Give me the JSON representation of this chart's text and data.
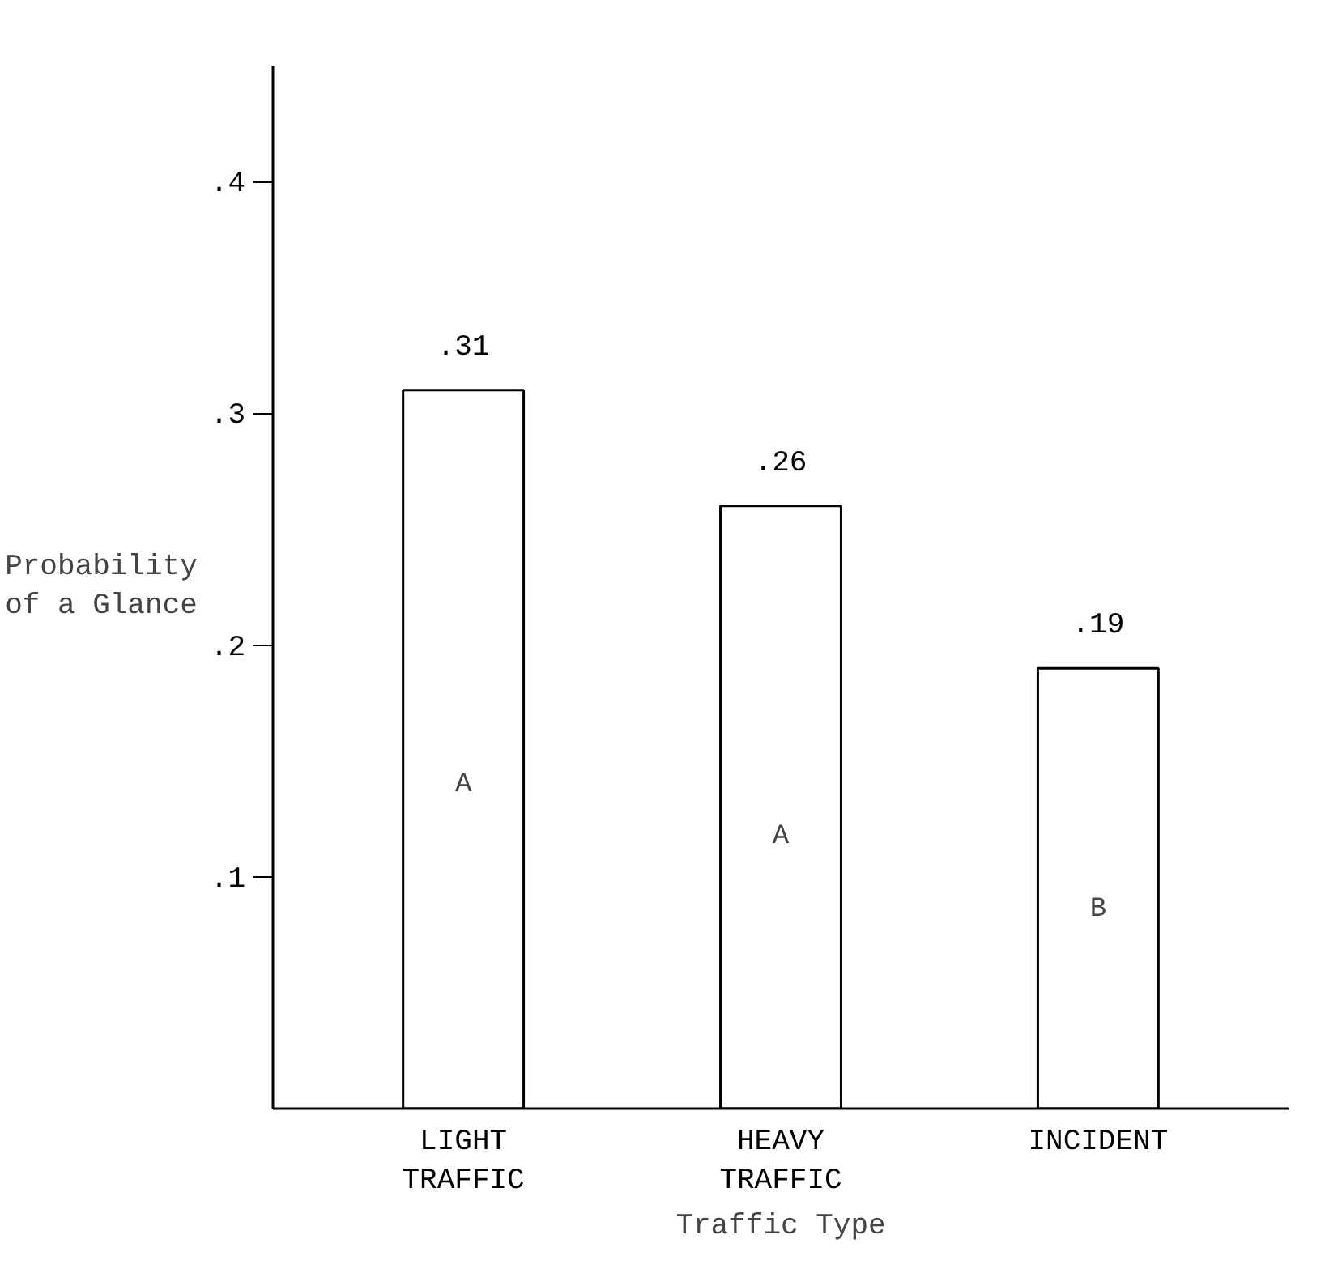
{
  "chart_data": {
    "type": "bar",
    "xlabel": "Traffic Type",
    "ylabel": "Probability\nof a Glance",
    "categories": [
      "LIGHT\nTRAFFIC",
      "HEAVY\nTRAFFIC",
      "INCIDENT"
    ],
    "values": [
      0.31,
      0.26,
      0.19
    ],
    "color": "#ffffff",
    "value_labels": [
      ".31",
      ".26",
      ".19"
    ],
    "ylim": [
      0,
      0.45
    ],
    "yticks": [
      {
        "value": 0.1,
        "label": ".1"
      },
      {
        "value": 0.2,
        "label": ".2"
      },
      {
        "value": 0.3,
        "label": ".3"
      },
      {
        "value": 0.4,
        "label": ".4"
      }
    ],
    "annotations": [
      "A",
      "A",
      "B"
    ],
    "grid": false
  }
}
